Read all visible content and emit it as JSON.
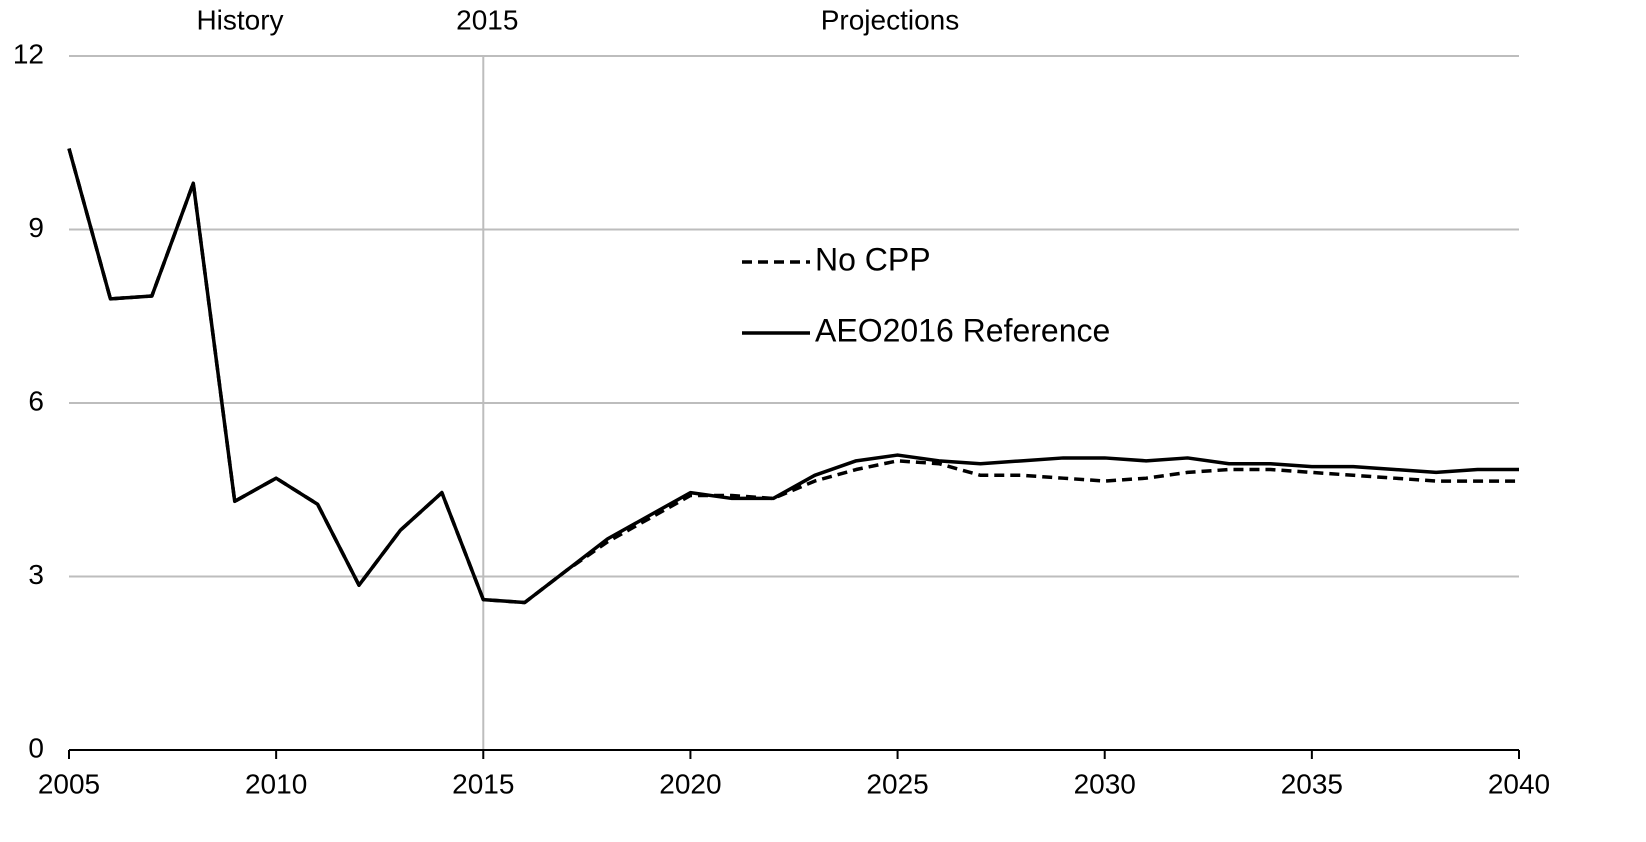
{
  "chart_data": {
    "type": "line",
    "annotations": [
      "History",
      "Projections"
    ],
    "reference_line": {
      "value": 2015,
      "label": "2015"
    },
    "x": [
      2005,
      2006,
      2007,
      2008,
      2009,
      2010,
      2011,
      2012,
      2013,
      2014,
      2015,
      2016,
      2017,
      2018,
      2019,
      2020,
      2021,
      2022,
      2023,
      2024,
      2025,
      2026,
      2027,
      2028,
      2029,
      2030,
      2031,
      2032,
      2033,
      2034,
      2035,
      2036,
      2037,
      2038,
      2039,
      2040
    ],
    "series": [
      {
        "name": "No CPP",
        "color": "#000000",
        "dashed": true,
        "values": [
          10.4,
          7.8,
          7.85,
          9.8,
          4.3,
          4.7,
          4.25,
          2.85,
          3.8,
          4.45,
          2.6,
          2.55,
          3.1,
          3.6,
          4.0,
          4.4,
          4.4,
          4.35,
          4.65,
          4.85,
          5.0,
          4.95,
          4.75,
          4.75,
          4.7,
          4.65,
          4.7,
          4.8,
          4.85,
          4.85,
          4.8,
          4.75,
          4.7,
          4.65,
          4.65,
          4.65
        ]
      },
      {
        "name": "AEO2016 Reference",
        "color": "#000000",
        "dashed": false,
        "values": [
          10.4,
          7.8,
          7.85,
          9.8,
          4.3,
          4.7,
          4.25,
          2.85,
          3.8,
          4.45,
          2.6,
          2.55,
          3.1,
          3.65,
          4.05,
          4.45,
          4.35,
          4.35,
          4.75,
          5.0,
          5.1,
          5.0,
          4.95,
          5.0,
          5.05,
          5.05,
          5.0,
          5.05,
          4.95,
          4.95,
          4.9,
          4.9,
          4.85,
          4.8,
          4.85,
          4.85
        ]
      }
    ],
    "xlim": [
      2005,
      2040
    ],
    "xticks": [
      2005,
      2010,
      2015,
      2020,
      2025,
      2030,
      2035,
      2040
    ],
    "ylim": [
      0,
      12
    ],
    "yticks": [
      0,
      3,
      6,
      9,
      12
    ],
    "grid": true
  }
}
